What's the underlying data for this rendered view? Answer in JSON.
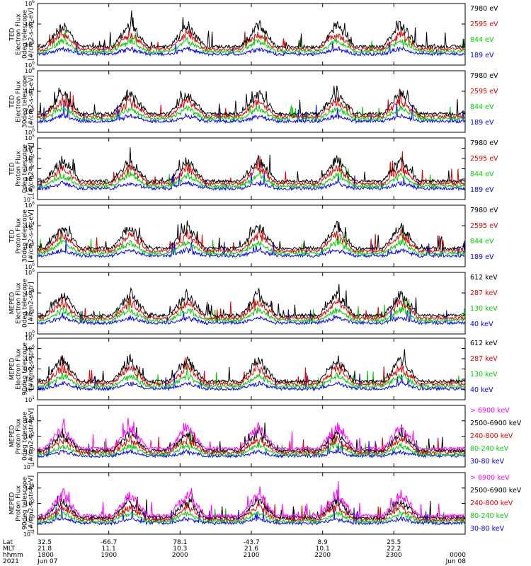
{
  "chart_data": {
    "type": "line",
    "x_range": [
      "1800",
      "0000"
    ],
    "panels": [
      {
        "ylabel": [
          "TED",
          "Electron Flux",
          "0deg telescope",
          "[#/cm2-s-str-eV]"
        ],
        "ylim_log10": [
          0,
          6
        ],
        "yticks": [
          "10",
          "10",
          "10",
          "10"
        ],
        "yexp": [
          "0",
          "2",
          "4",
          "6"
        ],
        "legend": [
          {
            "label": "7980 eV",
            "color": "#000000"
          },
          {
            "label": "2595 eV",
            "color": "#e00000"
          },
          {
            "label": "844 eV",
            "color": "#00cc00"
          },
          {
            "label": "189 eV",
            "color": "#0000ff"
          }
        ]
      },
      {
        "ylabel": [
          "TED",
          "Electron Flux",
          "30deg telescope",
          "[#/cm2-s-str-eV]"
        ],
        "ylim_log10": [
          0,
          6
        ],
        "yticks": [
          "10",
          "10",
          "10",
          "10"
        ],
        "yexp": [
          "0",
          "2",
          "4",
          "6"
        ],
        "legend": [
          {
            "label": "7980 eV",
            "color": "#000000"
          },
          {
            "label": "2595 eV",
            "color": "#e00000"
          },
          {
            "label": "844 eV",
            "color": "#00cc00"
          },
          {
            "label": "189 eV",
            "color": "#0000ff"
          }
        ]
      },
      {
        "ylabel": [
          "TED",
          "Proton Flux",
          "0deg telescope",
          "[#/cm2-s-str-eV]"
        ],
        "ylim_log10": [
          -1,
          5
        ],
        "yticks": [
          "10",
          "10",
          "10",
          "10",
          "10",
          "10",
          "10"
        ],
        "yexp": [
          "-1",
          "0",
          "1",
          "2",
          "3",
          "4",
          "5"
        ],
        "legend": [
          {
            "label": "7980 eV",
            "color": "#000000"
          },
          {
            "label": "2595 eV",
            "color": "#e00000"
          },
          {
            "label": "844 eV",
            "color": "#00cc00"
          },
          {
            "label": "189 eV",
            "color": "#0000ff"
          }
        ]
      },
      {
        "ylabel": [
          "TED",
          "Proton Flux",
          "30deg telescope",
          "[#/cm2-s-str-eV]"
        ],
        "ylim_log10": [
          0,
          6
        ],
        "yticks": [
          "10",
          "10",
          "10",
          "10"
        ],
        "yexp": [
          "0",
          "2",
          "4",
          "6"
        ],
        "legend": [
          {
            "label": "7980 eV",
            "color": "#000000"
          },
          {
            "label": "2595 eV",
            "color": "#e00000"
          },
          {
            "label": "844 eV",
            "color": "#00cc00"
          },
          {
            "label": "189 eV",
            "color": "#0000ff"
          }
        ]
      },
      {
        "ylabel": [
          "MEPED",
          "Electron Flux",
          "0deg telescope",
          "[#/cm2-s-str]"
        ],
        "ylim_log10": [
          0,
          6
        ],
        "yticks": [
          "10",
          "10",
          "10",
          "10"
        ],
        "yexp": [
          "0",
          "2",
          "4",
          "6"
        ],
        "legend": [
          {
            "label": "612 keV",
            "color": "#000000"
          },
          {
            "label": "287 keV",
            "color": "#e00000"
          },
          {
            "label": "130 keV",
            "color": "#00cc00"
          },
          {
            "label": "40 keV",
            "color": "#0000ff"
          }
        ]
      },
      {
        "ylabel": [
          "MEPED",
          "Electron Flux",
          "90deg telescope",
          "[#/cm2-s-str]"
        ],
        "ylim_log10": [
          1,
          7
        ],
        "yticks": [
          "10",
          "10",
          "10",
          "10",
          "10",
          "10",
          "10"
        ],
        "yexp": [
          "1",
          "2",
          "3",
          "4",
          "5",
          "6",
          "7"
        ],
        "legend": [
          {
            "label": "612 keV",
            "color": "#000000"
          },
          {
            "label": "287 keV",
            "color": "#e00000"
          },
          {
            "label": "130 keV",
            "color": "#00cc00"
          },
          {
            "label": "40 keV",
            "color": "#0000ff"
          }
        ]
      },
      {
        "ylabel": [
          "MEPED",
          "Proton Flux",
          "0deg telescope",
          "[#/cm2-s-str-keV]"
        ],
        "ylim_log10": [
          -2,
          6
        ],
        "yticks": [
          "10",
          "10",
          "10",
          "10"
        ],
        "yexp": [
          "-2",
          "0",
          "2",
          "4"
        ],
        "legend": [
          {
            "label": "> 6900 keV",
            "color": "#ff00ff"
          },
          {
            "label": "2500-6900 keV",
            "color": "#000000"
          },
          {
            "label": "240-800 keV",
            "color": "#e00000"
          },
          {
            "label": "80-240 keV",
            "color": "#00cc00"
          },
          {
            "label": "30-80 keV",
            "color": "#0000ff"
          }
        ]
      },
      {
        "ylabel": [
          "MEPED",
          "Proton Flux",
          "90deg telescope",
          "[#/cm2-s-str-keV]"
        ],
        "ylim_log10": [
          -2,
          6
        ],
        "yticks": [
          "10",
          "10",
          "10",
          "10"
        ],
        "yexp": [
          "-2",
          "0",
          "2",
          "4"
        ],
        "legend": [
          {
            "label": "> 6900 keV",
            "color": "#ff00ff"
          },
          {
            "label": "2500-6900 keV",
            "color": "#000000"
          },
          {
            "label": "240-800 keV",
            "color": "#e00000"
          },
          {
            "label": "80-240 keV",
            "color": "#00cc00"
          },
          {
            "label": "30-80 keV",
            "color": "#0000ff"
          }
        ]
      }
    ],
    "ephemeris": {
      "row_labels": [
        "Lat",
        "MLT",
        "hhmm",
        "2021"
      ],
      "columns": [
        {
          "lat": "32.5",
          "mlt": "21.8",
          "hhmm": "1800",
          "date": "Jun 07"
        },
        {
          "lat": "-66.7",
          "mlt": "11.1",
          "hhmm": "1900",
          "date": ""
        },
        {
          "lat": "78.1",
          "mlt": "10.3",
          "hhmm": "2000",
          "date": ""
        },
        {
          "lat": "-43.7",
          "mlt": "21.6",
          "hhmm": "2100",
          "date": ""
        },
        {
          "lat": "8.9",
          "mlt": "10.1",
          "hhmm": "2200",
          "date": ""
        },
        {
          "lat": "25.5",
          "mlt": "22.2",
          "hhmm": "2300",
          "date": ""
        },
        {
          "lat": "",
          "mlt": "",
          "hhmm": "0000",
          "date": "Jun 08"
        }
      ]
    }
  }
}
